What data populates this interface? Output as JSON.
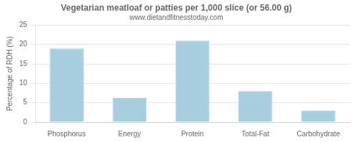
{
  "chart_data": {
    "type": "bar",
    "title": "Vegetarian meatloaf or patties per 1,000 slice (or 56.00 g)",
    "subtitle": "www.dietandfitnesstoday.com",
    "ylabel": "Percentage of RDH (%)",
    "categories": [
      "Phosphorus",
      "Energy",
      "Protein",
      "Total-Fat",
      "Carbohydrate"
    ],
    "values": [
      19.0,
      6.2,
      21.0,
      8.0,
      3.0
    ],
    "color": "#a8cfe0",
    "ylim": [
      0,
      25
    ],
    "yticks": [
      0,
      5,
      10,
      15,
      20,
      25
    ],
    "grid": true
  }
}
